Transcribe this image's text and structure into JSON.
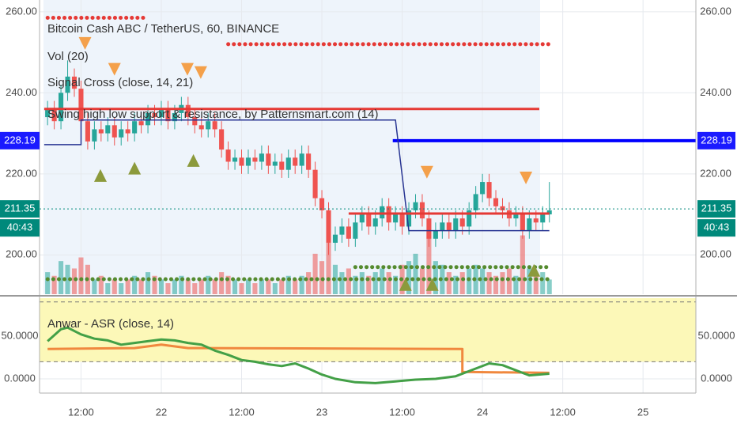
{
  "chart_data": {
    "type": "candlestick",
    "title": "Bitcoin Cash ABC / TetherUS, 60, BINANCE",
    "indicators": [
      "Vol (20)",
      "Signal Cross (close, 14, 21)",
      "Swing high low support & resistance, by Patternsmart.com (14)"
    ],
    "x": [
      7,
      8,
      9,
      10,
      11,
      12,
      13,
      14,
      15,
      16,
      17,
      18,
      19,
      20,
      21,
      22,
      23,
      24,
      25,
      26,
      27,
      28,
      29,
      30,
      31,
      32,
      33,
      34,
      35,
      36,
      37,
      38,
      39,
      40,
      41,
      42,
      43,
      44,
      45,
      46,
      47,
      48,
      49,
      50,
      51,
      52,
      53,
      54,
      55,
      56,
      57,
      58,
      59,
      60,
      61,
      62,
      63,
      64,
      65,
      66,
      67,
      68,
      69,
      70,
      71,
      72,
      73,
      74,
      75,
      76,
      77,
      78,
      79,
      80,
      81,
      82
    ],
    "open": [
      234,
      236,
      233,
      240,
      244,
      241,
      233,
      228,
      231,
      230,
      232,
      229,
      231,
      230,
      233,
      232,
      235,
      234,
      236,
      233,
      235,
      237,
      234,
      232,
      231,
      233,
      231,
      226,
      223,
      224,
      222,
      224,
      223,
      225,
      222,
      223,
      221,
      224,
      222,
      225,
      221,
      214,
      211,
      203,
      205,
      207,
      204,
      208,
      210,
      207,
      209,
      212,
      208,
      210,
      207,
      211,
      213,
      209,
      204,
      206,
      208,
      206,
      209,
      207,
      211,
      215,
      218,
      214,
      212,
      211,
      209,
      210,
      206,
      209,
      208,
      210
    ],
    "high": [
      238,
      238,
      242,
      248,
      246,
      243,
      235,
      233,
      233,
      234,
      234,
      233,
      233,
      235,
      235,
      237,
      237,
      238,
      238,
      237,
      239,
      239,
      236,
      234,
      235,
      235,
      233,
      228,
      226,
      226,
      226,
      226,
      227,
      227,
      225,
      225,
      226,
      226,
      227,
      227,
      223,
      216,
      213,
      207,
      209,
      209,
      210,
      212,
      212,
      211,
      214,
      214,
      212,
      212,
      213,
      215,
      215,
      211,
      208,
      210,
      210,
      211,
      211,
      213,
      217,
      220,
      220,
      216,
      214,
      213,
      212,
      212,
      211,
      211,
      212,
      218
    ],
    "low": [
      232,
      231,
      231,
      238,
      239,
      231,
      226,
      226,
      228,
      228,
      227,
      227,
      228,
      228,
      230,
      230,
      232,
      232,
      231,
      231,
      233,
      232,
      230,
      229,
      229,
      229,
      224,
      221,
      221,
      220,
      220,
      221,
      221,
      220,
      220,
      219,
      219,
      220,
      220,
      219,
      212,
      209,
      200,
      201,
      203,
      202,
      202,
      206,
      205,
      205,
      207,
      206,
      206,
      205,
      205,
      209,
      207,
      202,
      202,
      204,
      204,
      204,
      205,
      205,
      209,
      213,
      212,
      210,
      209,
      207,
      207,
      204,
      204,
      206,
      206,
      208
    ],
    "close": [
      236,
      233,
      240,
      244,
      241,
      233,
      228,
      231,
      230,
      232,
      229,
      231,
      230,
      233,
      232,
      235,
      234,
      236,
      233,
      235,
      237,
      234,
      232,
      231,
      233,
      231,
      226,
      223,
      224,
      222,
      224,
      223,
      225,
      222,
      223,
      221,
      224,
      222,
      225,
      221,
      214,
      211,
      203,
      205,
      207,
      204,
      208,
      210,
      207,
      209,
      212,
      208,
      210,
      207,
      211,
      213,
      209,
      204,
      206,
      208,
      206,
      209,
      207,
      211,
      215,
      218,
      214,
      212,
      211,
      209,
      210,
      206,
      209,
      208,
      210,
      211
    ],
    "up_color": "#26a69a",
    "down_color": "#ef5350",
    "volume": [
      30,
      25,
      45,
      40,
      35,
      50,
      40,
      20,
      25,
      15,
      20,
      15,
      20,
      25,
      20,
      30,
      25,
      20,
      15,
      20,
      25,
      20,
      15,
      20,
      25,
      20,
      30,
      25,
      20,
      15,
      20,
      15,
      20,
      20,
      15,
      20,
      25,
      20,
      25,
      30,
      55,
      45,
      70,
      40,
      30,
      35,
      25,
      30,
      25,
      30,
      35,
      30,
      25,
      40,
      45,
      55,
      35,
      85,
      45,
      40,
      30,
      25,
      30,
      35,
      40,
      35,
      30,
      25,
      30,
      35,
      25,
      80,
      35,
      25,
      30,
      20
    ],
    "vlim": [
      0,
      400
    ],
    "xlim": [
      5.8,
      103.9
    ],
    "xticks": [
      {
        "value": 12,
        "label": "12:00"
      },
      {
        "value": 24,
        "label": "22"
      },
      {
        "value": 36,
        "label": "12:00"
      },
      {
        "value": 48,
        "label": "23"
      },
      {
        "value": 60,
        "label": "12:00"
      },
      {
        "value": 72,
        "label": "24"
      },
      {
        "value": 84,
        "label": "12:00"
      },
      {
        "value": 96,
        "label": "25"
      }
    ],
    "ylim": [
      190.3,
      262.9
    ],
    "yticks": [
      {
        "value": 200,
        "label": "200.00"
      },
      {
        "value": 220,
        "label": "220.00"
      },
      {
        "value": 240,
        "label": "240.00"
      },
      {
        "value": 260,
        "label": "260.00"
      }
    ],
    "grid": true,
    "lines": [
      {
        "color": "#e53935",
        "width": 3,
        "style": "solid",
        "x": [
          6.5,
          80.5
        ],
        "values": [
          236,
          236
        ]
      },
      {
        "color": "#0000ff",
        "width": 4,
        "style": "solid",
        "x": [
          58.6,
          103.9
        ],
        "values": [
          228.19,
          228.19
        ]
      },
      {
        "color": "#283593",
        "width": 1.5,
        "style": "solid",
        "x": [
          6.5,
          12,
          12,
          59,
          61,
          82
        ],
        "values": [
          227.2,
          227.2,
          233.3,
          233.3,
          206,
          206
        ]
      },
      {
        "color": "#e53935",
        "width": 3,
        "style": "solid",
        "x": [
          52,
          82
        ],
        "values": [
          210.2,
          210.2
        ]
      },
      {
        "color": "#e53935",
        "width": 3,
        "style": "dotted",
        "x": [
          7,
          22
        ],
        "values": [
          258.5,
          258.5
        ]
      },
      {
        "color": "#e53935",
        "width": 3,
        "style": "dotted",
        "x": [
          34,
          82
        ],
        "values": [
          252,
          252
        ]
      },
      {
        "color": "#558b2f",
        "width": 3,
        "style": "dotted",
        "x": [
          7,
          82
        ],
        "values": [
          194,
          194
        ]
      },
      {
        "color": "#558b2f",
        "width": 3,
        "style": "dotted",
        "x": [
          53,
          82
        ],
        "values": [
          197,
          197
        ]
      }
    ],
    "markers": {
      "down": {
        "color": "#f4a04a",
        "x": [
          12.6,
          17,
          27.9,
          29.9,
          63.7,
          78.5
        ],
        "values": [
          252.2,
          245.8,
          245.8,
          245,
          220.4,
          219
        ]
      },
      "up": {
        "color": "#8c9a3c",
        "x": [
          14.9,
          20,
          28.8,
          60.5,
          64.5,
          79.7
        ],
        "values": [
          219.6,
          221.4,
          223.3,
          192.7,
          192.7,
          196.2
        ]
      }
    },
    "price_tags": {
      "values": [
        228.19,
        211.35
      ],
      "colors": [
        "#1a1aff",
        "#00897b"
      ],
      "dotted": [
        false,
        true
      ]
    },
    "countdown": "40:43",
    "oscillator": {
      "title": "Anwar - ASR (close, 14)",
      "ylim": [
        -16.7,
        94.4
      ],
      "yticks": [
        {
          "value": 0,
          "label": "0.0000"
        },
        {
          "value": 50,
          "label": "50.0000"
        }
      ],
      "levels": [
        20,
        90
      ],
      "band_color": "#fcf8b8",
      "series": [
        {
          "color": "#f0883e",
          "x": [
            7,
            20,
            24,
            28,
            69,
            69,
            82
          ],
          "values": [
            35,
            36,
            40,
            36,
            35,
            8,
            7
          ]
        },
        {
          "color": "#43a047",
          "x": [
            7,
            9,
            10,
            12,
            14,
            16,
            18,
            20,
            22,
            24,
            26,
            28,
            30,
            32,
            34,
            36,
            38,
            40,
            42,
            44,
            46,
            48,
            50,
            53,
            56,
            59,
            62,
            65,
            68,
            71,
            73,
            75,
            77,
            79,
            82
          ],
          "values": [
            44,
            58,
            60,
            52,
            47,
            45,
            40,
            42,
            44,
            46,
            45,
            42,
            40,
            33,
            28,
            22,
            20,
            17,
            15,
            18,
            12,
            5,
            0,
            -4,
            -5,
            -3,
            -1,
            0,
            3,
            12,
            18,
            16,
            10,
            4,
            6
          ]
        }
      ]
    }
  }
}
